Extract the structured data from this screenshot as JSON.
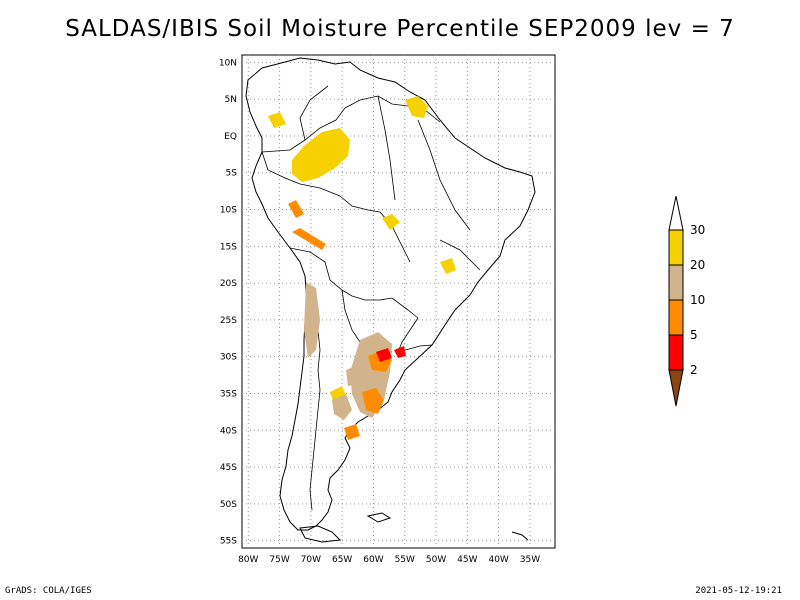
{
  "title": "SALDAS/IBIS Soil Moisture Percentile SEP2009 lev = 7",
  "map": {
    "region": "South America",
    "lat_labels": [
      "10N",
      "5N",
      "EQ",
      "5S",
      "10S",
      "15S",
      "20S",
      "25S",
      "30S",
      "35S",
      "40S",
      "45S",
      "50S",
      "55S"
    ],
    "lon_labels": [
      "80W",
      "75W",
      "70W",
      "65W",
      "60W",
      "55W",
      "50W",
      "45W",
      "40W",
      "35W"
    ],
    "grid": "dotted",
    "extent": {
      "lon": [
        -81,
        -31
      ],
      "lat": [
        -56,
        11
      ]
    }
  },
  "legend": {
    "labels": [
      "30",
      "20",
      "10",
      "5",
      "2"
    ],
    "colors": {
      "above_30": "#ffffff",
      "20_30": "#f7d000",
      "10_20": "#d2b48c",
      "5_10": "#ff8c00",
      "2_5": "#ff0000",
      "below_2": "#8b4513"
    }
  },
  "footer": {
    "credit": "GrADS: COLA/IGES",
    "timestamp": "2021-05-12-19:21"
  }
}
